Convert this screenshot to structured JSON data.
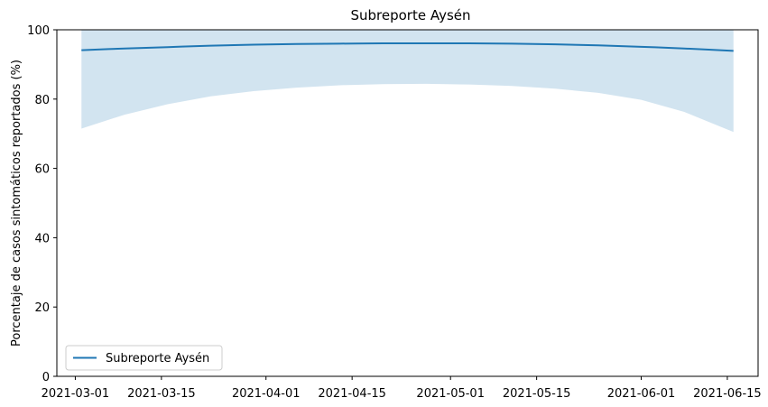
{
  "chart_data": {
    "type": "line",
    "title": "Subreporte Aysén",
    "ylabel": "Porcentaje de casos sintomáticos reportados (%)",
    "xlabel": "",
    "xlim": [
      "2021-02-26",
      "2021-06-20"
    ],
    "ylim": [
      0,
      100
    ],
    "x_ticks": [
      "2021-03-01",
      "2021-03-15",
      "2021-04-01",
      "2021-04-15",
      "2021-05-01",
      "2021-05-15",
      "2021-06-01",
      "2021-06-15"
    ],
    "y_ticks": [
      0,
      20,
      40,
      60,
      80,
      100
    ],
    "grid": false,
    "legend_position": "lower-left",
    "colors": {
      "line": "#1f77b4",
      "band": "#1f77b4",
      "band_opacity": 0.2
    },
    "series": [
      {
        "name": "Subreporte Aysén",
        "x": [
          "2021-03-02",
          "2021-03-09",
          "2021-03-16",
          "2021-03-23",
          "2021-03-30",
          "2021-04-06",
          "2021-04-13",
          "2021-04-20",
          "2021-04-27",
          "2021-05-04",
          "2021-05-11",
          "2021-05-18",
          "2021-05-25",
          "2021-06-01",
          "2021-06-08",
          "2021-06-16"
        ],
        "y": [
          94.1,
          94.6,
          95.0,
          95.4,
          95.7,
          95.9,
          96.0,
          96.1,
          96.1,
          96.1,
          96.0,
          95.8,
          95.5,
          95.1,
          94.6,
          93.9
        ],
        "upper": [
          100,
          100,
          100,
          100,
          100,
          100,
          100,
          100,
          100,
          100,
          100,
          100,
          100,
          100,
          100,
          100
        ],
        "lower": [
          71.5,
          75.5,
          78.5,
          80.8,
          82.3,
          83.3,
          84.0,
          84.3,
          84.4,
          84.2,
          83.8,
          83.0,
          81.8,
          79.8,
          76.3,
          70.5
        ]
      }
    ]
  }
}
